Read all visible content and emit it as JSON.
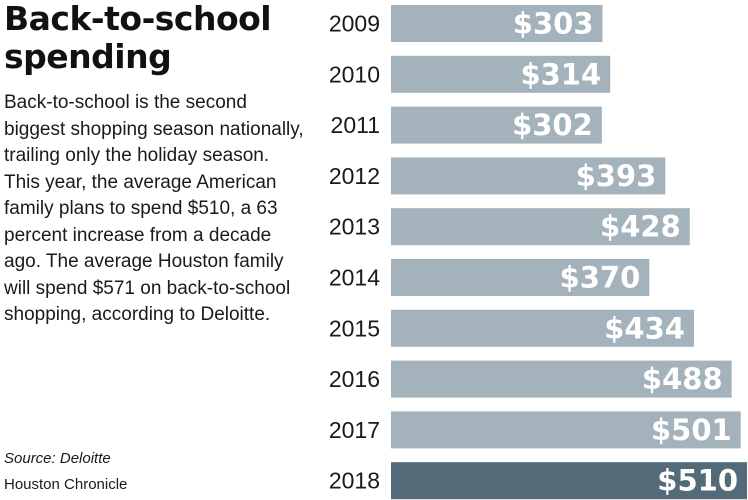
{
  "heading": {
    "title_line1": "Back-to-school",
    "title_line2": "spending"
  },
  "description": "Back-to-school is the second biggest shopping season nationally, trailing only the holiday season. This year, the average American family plans to spend $510, a 63 percent increase from a decade ago. The average Houston family will spend $571 on back-to-school shopping, according to Deloitte.",
  "source": "Source: Deloitte",
  "credit": "Houston Chronicle",
  "colors": {
    "bar": "#a3b2bb",
    "bar_highlight": "#536a78",
    "bar_label": "#ffffff"
  },
  "chart_data": {
    "type": "bar",
    "orientation": "horizontal",
    "categories": [
      "2009",
      "2010",
      "2011",
      "2012",
      "2013",
      "2014",
      "2015",
      "2016",
      "2017",
      "2018"
    ],
    "values": [
      303,
      314,
      302,
      393,
      428,
      370,
      434,
      488,
      501,
      510
    ],
    "value_labels": [
      "$303",
      "$314",
      "$302",
      "$393",
      "$428",
      "$370",
      "$434",
      "$488",
      "$501",
      "$510"
    ],
    "highlight_category": "2018",
    "title": "",
    "xlabel": "",
    "ylabel": "",
    "grid": false,
    "legend": "none"
  }
}
